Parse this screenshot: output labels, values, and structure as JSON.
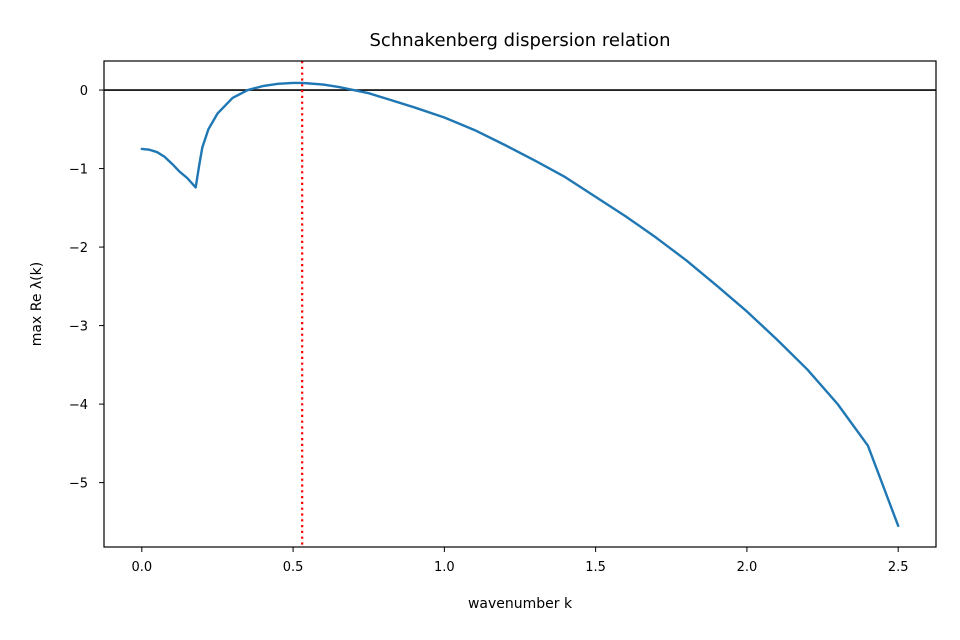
{
  "chart_data": {
    "type": "line",
    "title": "Schnakenberg dispersion relation",
    "xlabel": "wavenumber k",
    "ylabel": "max Re λ(k)",
    "xlim": [
      -0.125,
      2.625
    ],
    "ylim": [
      -5.82,
      0.37
    ],
    "xticks": [
      0.0,
      0.5,
      1.0,
      1.5,
      2.0,
      2.5
    ],
    "xtick_labels": [
      "0.0",
      "0.5",
      "1.0",
      "1.5",
      "2.0",
      "2.5"
    ],
    "yticks": [
      0,
      -1,
      -2,
      -3,
      -4,
      -5
    ],
    "ytick_labels": [
      "0",
      "−1",
      "−2",
      "−3",
      "−4",
      "−5"
    ],
    "grid": false,
    "series": [
      {
        "color": "#1f77b4",
        "x": [
          0.0,
          0.025,
          0.05,
          0.075,
          0.1,
          0.125,
          0.15,
          0.178,
          0.19,
          0.2,
          0.22,
          0.25,
          0.3,
          0.35,
          0.4,
          0.45,
          0.5,
          0.53,
          0.55,
          0.6,
          0.65,
          0.7,
          0.75,
          0.8,
          0.9,
          1.0,
          1.1,
          1.2,
          1.3,
          1.4,
          1.5,
          1.6,
          1.7,
          1.8,
          1.9,
          2.0,
          2.1,
          2.2,
          2.3,
          2.4,
          2.5
        ],
        "y": [
          -0.75,
          -0.76,
          -0.79,
          -0.85,
          -0.94,
          -1.04,
          -1.12,
          -1.24,
          -0.95,
          -0.73,
          -0.5,
          -0.3,
          -0.1,
          0.0,
          0.05,
          0.08,
          0.09,
          0.09,
          0.085,
          0.07,
          0.04,
          0.0,
          -0.04,
          -0.1,
          -0.22,
          -0.35,
          -0.51,
          -0.7,
          -0.9,
          -1.11,
          -1.36,
          -1.61,
          -1.88,
          -2.17,
          -2.49,
          -2.82,
          -3.18,
          -3.56,
          -4.0,
          -4.53,
          -5.55
        ]
      }
    ],
    "reference_lines": [
      {
        "orientation": "horizontal",
        "value": 0,
        "color": "#000000",
        "style": "solid"
      },
      {
        "orientation": "vertical",
        "value": 0.53,
        "color": "#ff0000",
        "style": "dotted"
      }
    ]
  }
}
